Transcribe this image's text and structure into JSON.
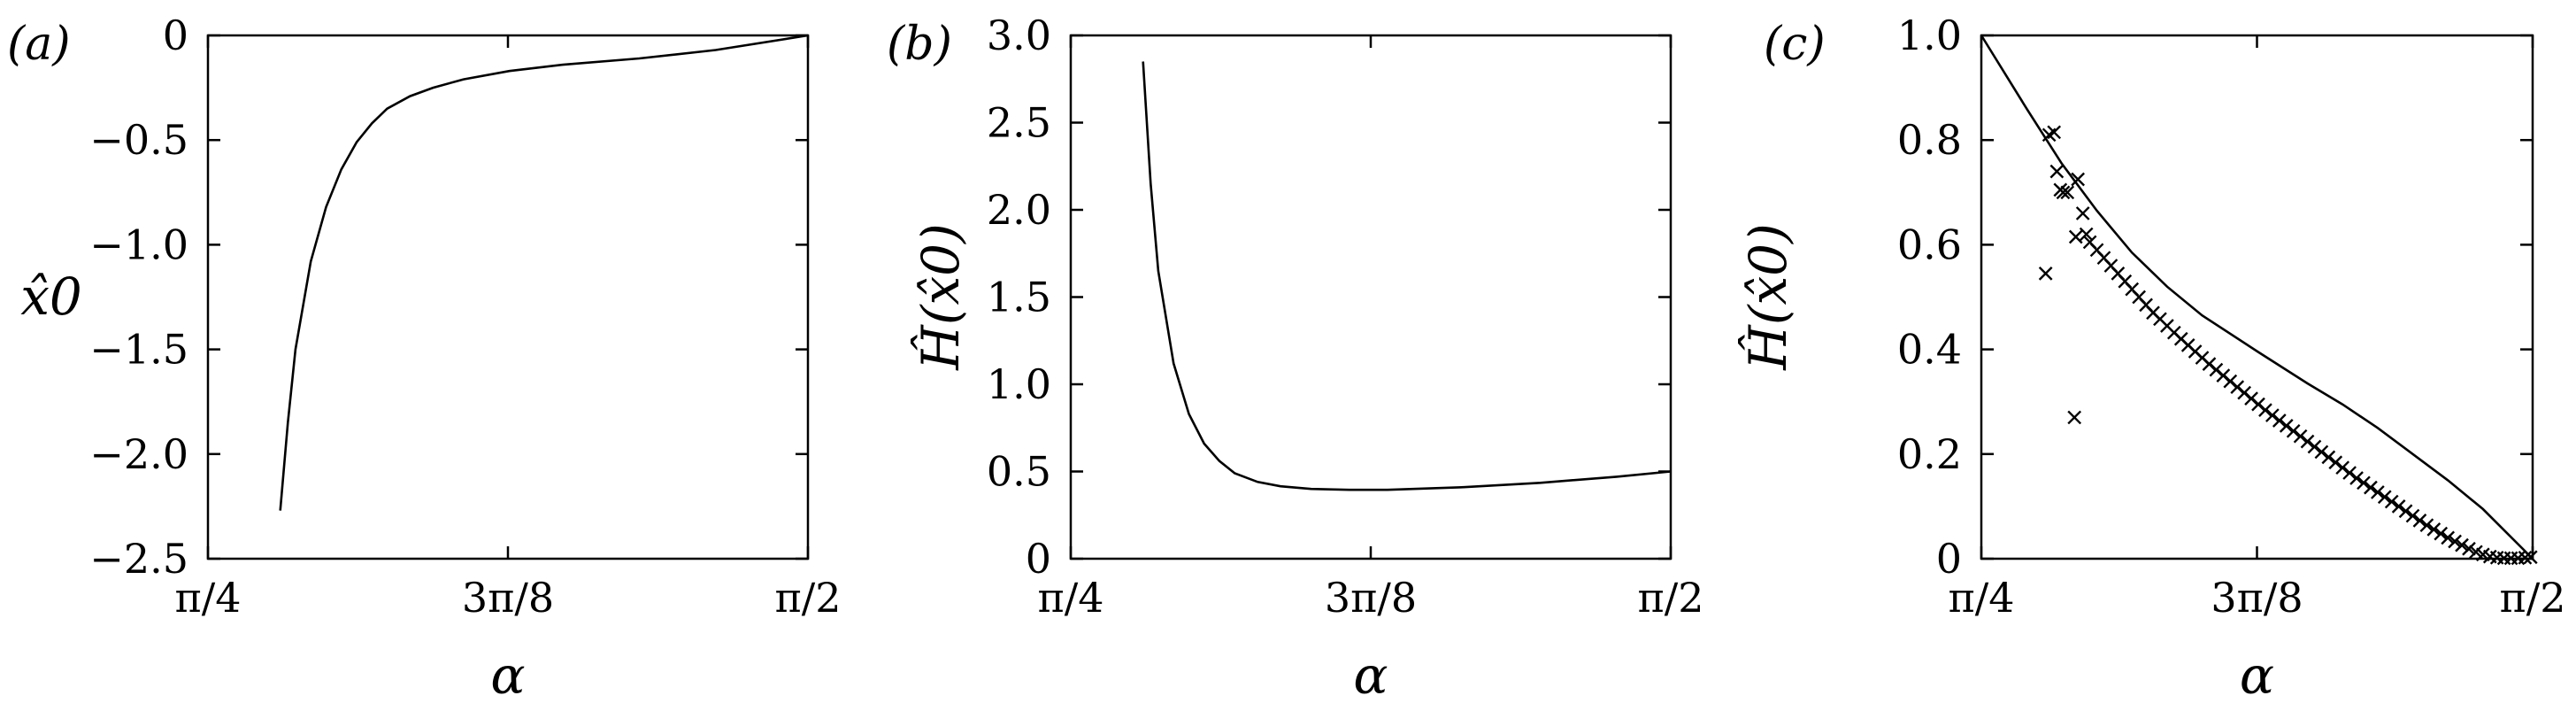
{
  "colors": {
    "ink": "#000000",
    "background": "#ffffff"
  },
  "chart_data": [
    {
      "type": "line",
      "panel_label": "(a)",
      "xlabel": "α",
      "ylabel": "x̂0",
      "xlim": [
        0.7854,
        1.5708
      ],
      "ylim": [
        -2.5,
        0
      ],
      "xticks": [
        0.7854,
        1.1781,
        1.5708
      ],
      "xtick_labels": [
        "π/4",
        "3π/8",
        "π/2"
      ],
      "yticks": [
        0,
        -0.5,
        -1.0,
        -1.5,
        -2.0,
        -2.5
      ],
      "ytick_labels": [
        "0",
        "−0.5",
        "−1.0",
        "−1.5",
        "−2.0",
        "−2.5"
      ],
      "series": [
        {
          "style": "line",
          "x": [
            0.88,
            0.89,
            0.9,
            0.92,
            0.94,
            0.96,
            0.98,
            1.0,
            1.02,
            1.05,
            1.08,
            1.12,
            1.18,
            1.25,
            1.35,
            1.45,
            1.5708
          ],
          "y": [
            -2.27,
            -1.85,
            -1.5,
            -1.08,
            -0.82,
            -0.64,
            -0.51,
            -0.42,
            -0.35,
            -0.29,
            -0.25,
            -0.21,
            -0.17,
            -0.14,
            -0.11,
            -0.07,
            0.0
          ]
        }
      ]
    },
    {
      "type": "line",
      "panel_label": "(b)",
      "xlabel": "α",
      "ylabel": "Ĥ(x̂0)",
      "xlim": [
        0.7854,
        1.5708
      ],
      "ylim": [
        0,
        3.0
      ],
      "xticks": [
        0.7854,
        1.1781,
        1.5708
      ],
      "xtick_labels": [
        "π/4",
        "3π/8",
        "π/2"
      ],
      "yticks": [
        0,
        0.5,
        1.0,
        1.5,
        2.0,
        2.5,
        3.0
      ],
      "ytick_labels": [
        "0",
        "0.5",
        "1.0",
        "1.5",
        "2.0",
        "2.5",
        "3.0"
      ],
      "series": [
        {
          "style": "line",
          "x": [
            0.88,
            0.89,
            0.9,
            0.92,
            0.94,
            0.96,
            0.98,
            1.0,
            1.03,
            1.06,
            1.1,
            1.15,
            1.2,
            1.3,
            1.4,
            1.5,
            1.5708
          ],
          "y": [
            2.85,
            2.15,
            1.65,
            1.12,
            0.83,
            0.66,
            0.56,
            0.49,
            0.44,
            0.415,
            0.4,
            0.395,
            0.395,
            0.41,
            0.435,
            0.47,
            0.5
          ]
        }
      ]
    },
    {
      "type": "scatter",
      "panel_label": "(c)",
      "xlabel": "α",
      "ylabel": "Ĥ(x̂0)",
      "xlim": [
        0.7854,
        1.5708
      ],
      "ylim": [
        0,
        1.0
      ],
      "xticks": [
        0.7854,
        1.1781,
        1.5708
      ],
      "xtick_labels": [
        "π/4",
        "3π/8",
        "π/2"
      ],
      "yticks": [
        0,
        0.2,
        0.4,
        0.6,
        0.8,
        1.0
      ],
      "ytick_labels": [
        "0",
        "0.2",
        "0.4",
        "0.6",
        "0.8",
        "1.0"
      ],
      "series": [
        {
          "style": "line",
          "x": [
            0.7854,
            0.85,
            0.9,
            0.95,
            1.0,
            1.05,
            1.1,
            1.18,
            1.25,
            1.3,
            1.35,
            1.4,
            1.45,
            1.5,
            1.5708
          ],
          "y": [
            1.0,
            0.86,
            0.755,
            0.665,
            0.585,
            0.52,
            0.465,
            0.395,
            0.335,
            0.295,
            0.25,
            0.2,
            0.15,
            0.095,
            0.0
          ]
        },
        {
          "style": "markers",
          "marker": "x",
          "x": [
            0.877,
            0.882,
            0.889,
            0.893,
            0.898,
            0.902,
            0.908,
            0.918,
            0.92,
            0.923,
            0.93,
            0.935,
            0.94,
            0.95,
            0.96,
            0.97,
            0.98,
            0.99,
            1.0,
            1.01,
            1.02,
            1.03,
            1.04,
            1.05,
            1.06,
            1.07,
            1.08,
            1.09,
            1.1,
            1.11,
            1.12,
            1.13,
            1.14,
            1.15,
            1.16,
            1.17,
            1.18,
            1.19,
            1.2,
            1.21,
            1.22,
            1.23,
            1.24,
            1.25,
            1.26,
            1.27,
            1.28,
            1.29,
            1.3,
            1.31,
            1.32,
            1.33,
            1.34,
            1.35,
            1.36,
            1.37,
            1.38,
            1.39,
            1.4,
            1.41,
            1.42,
            1.43,
            1.44,
            1.45,
            1.46,
            1.47,
            1.48,
            1.49,
            1.5,
            1.51,
            1.52,
            1.53,
            1.54,
            1.55,
            1.56,
            1.568
          ],
          "y": [
            0.545,
            0.81,
            0.815,
            0.74,
            0.705,
            0.7,
            0.7,
            0.27,
            0.615,
            0.725,
            0.66,
            0.62,
            0.605,
            0.59,
            0.575,
            0.56,
            0.545,
            0.53,
            0.515,
            0.5,
            0.485,
            0.47,
            0.458,
            0.445,
            0.432,
            0.42,
            0.408,
            0.396,
            0.384,
            0.372,
            0.361,
            0.35,
            0.339,
            0.328,
            0.317,
            0.306,
            0.295,
            0.284,
            0.274,
            0.264,
            0.254,
            0.244,
            0.234,
            0.224,
            0.214,
            0.204,
            0.194,
            0.184,
            0.174,
            0.164,
            0.154,
            0.145,
            0.136,
            0.127,
            0.118,
            0.109,
            0.1,
            0.091,
            0.082,
            0.073,
            0.064,
            0.056,
            0.048,
            0.04,
            0.033,
            0.026,
            0.019,
            0.013,
            0.008,
            0.004,
            0.002,
            0.001,
            0.001,
            0.001,
            0.002,
            0.003
          ]
        }
      ]
    }
  ]
}
